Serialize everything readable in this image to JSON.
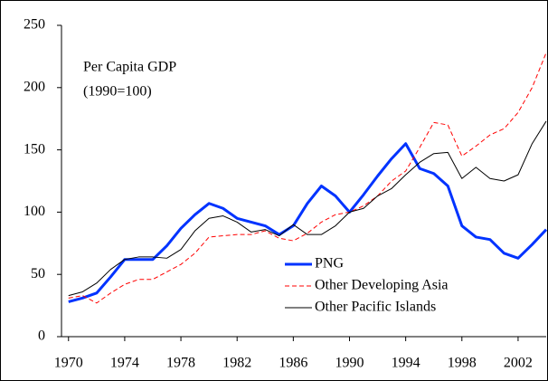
{
  "chart_data": {
    "type": "line",
    "annotation": [
      "Per Capita GDP",
      "(1990=100)"
    ],
    "x": [
      1970,
      1971,
      1972,
      1973,
      1974,
      1975,
      1976,
      1977,
      1978,
      1979,
      1980,
      1981,
      1982,
      1983,
      1984,
      1985,
      1986,
      1987,
      1988,
      1989,
      1990,
      1991,
      1992,
      1993,
      1994,
      1995,
      1996,
      1997,
      1998,
      1999,
      2000,
      2001,
      2002,
      2003,
      2004
    ],
    "xlim": [
      1969.5,
      2004
    ],
    "xticks": [
      1970,
      1974,
      1978,
      1982,
      1986,
      1990,
      1994,
      1998,
      2002
    ],
    "ylim": [
      0,
      250
    ],
    "yticks": [
      0,
      50,
      100,
      150,
      200,
      250
    ],
    "grid": false,
    "legend": "bottom-center",
    "series": [
      {
        "name": "PNG",
        "color": "#0033ff",
        "width": 3,
        "dash": "solid",
        "values": [
          28,
          31,
          35,
          48,
          62,
          62,
          62,
          73,
          87,
          98,
          107,
          103,
          95,
          92,
          89,
          82,
          89,
          107,
          121,
          113,
          100,
          114,
          129,
          143,
          155,
          135,
          131,
          121,
          89,
          80,
          78,
          67,
          63,
          74,
          86
        ]
      },
      {
        "name": "Other Developing Asia",
        "color": "#ff0000",
        "width": 1,
        "dash": "dashed",
        "values": [
          31,
          33,
          27,
          35,
          42,
          46,
          46,
          52,
          58,
          67,
          80,
          81,
          82,
          82,
          85,
          79,
          77,
          83,
          92,
          98,
          100,
          105,
          113,
          125,
          133,
          152,
          172,
          170,
          145,
          153,
          162,
          167,
          180,
          200,
          228
        ]
      },
      {
        "name": "Other Pacific Islands",
        "color": "#000000",
        "width": 1,
        "dash": "solid",
        "values": [
          33,
          36,
          43,
          54,
          62,
          64,
          64,
          63,
          70,
          85,
          95,
          97,
          92,
          84,
          86,
          81,
          90,
          82,
          82,
          89,
          100,
          103,
          113,
          119,
          130,
          140,
          147,
          148,
          127,
          136,
          127,
          125,
          130,
          155,
          173
        ]
      }
    ]
  }
}
